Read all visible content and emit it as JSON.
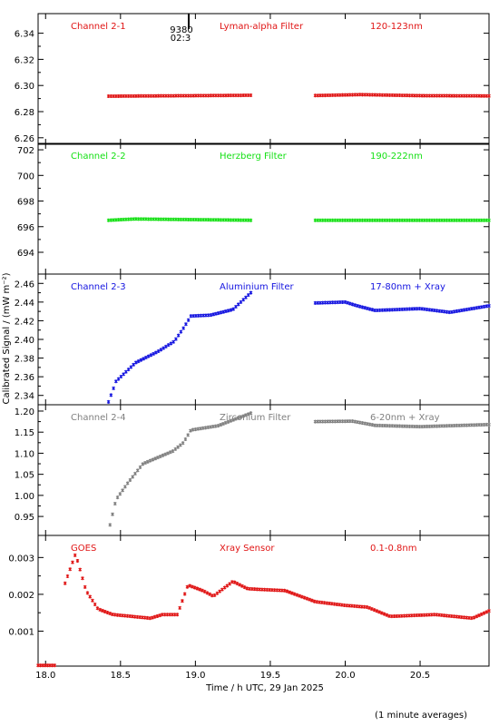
{
  "figure": {
    "ylabel": "Calibrated Signal / (mW m⁻²)",
    "xlabel": "Time / h UTC, 29 Jan 2025",
    "footnote": "(1 minute averages)",
    "annotation": {
      "lines": [
        "9380",
        "02:3"
      ]
    }
  },
  "chart_data": [
    {
      "type": "scatter",
      "color": "#e01414",
      "labels": [
        "Channel 2-1",
        "Lyman-alpha Filter",
        "120-123nm"
      ],
      "ylim": [
        6.255,
        6.355
      ],
      "yticks": [
        6.26,
        6.28,
        6.3,
        6.32,
        6.34
      ],
      "ytick_labels": [
        "6.26",
        "6.28",
        "6.30",
        "6.32",
        "6.34"
      ],
      "segments": [
        {
          "knots": [
            [
              18.42,
              6.2918
            ],
            [
              19.0,
              6.2922
            ],
            [
              19.37,
              6.2925
            ]
          ]
        },
        {
          "knots": [
            [
              19.8,
              6.2923
            ],
            [
              20.1,
              6.293
            ],
            [
              20.5,
              6.2922
            ],
            [
              20.96,
              6.292
            ]
          ]
        }
      ]
    },
    {
      "type": "scatter",
      "color": "#14e014",
      "labels": [
        "Channel 2-2",
        "Herzberg Filter",
        "190-222nm"
      ],
      "ylim": [
        692.3,
        702.5
      ],
      "yticks": [
        694,
        696,
        698,
        700,
        702
      ],
      "ytick_labels": [
        "694",
        "696",
        "698",
        "700",
        "702"
      ],
      "segments": [
        {
          "knots": [
            [
              18.42,
              696.5
            ],
            [
              18.6,
              696.6
            ],
            [
              19.37,
              696.5
            ]
          ]
        },
        {
          "knots": [
            [
              19.8,
              696.5
            ],
            [
              20.3,
              696.5
            ],
            [
              20.96,
              696.5
            ]
          ]
        }
      ]
    },
    {
      "type": "scatter",
      "color": "#1414e0",
      "labels": [
        "Channel 2-3",
        "Aluminium Filter",
        "17-80nm + Xray"
      ],
      "ylim": [
        2.33,
        2.47
      ],
      "yticks": [
        2.34,
        2.36,
        2.38,
        2.4,
        2.42,
        2.44,
        2.46
      ],
      "ytick_labels": [
        "2.34",
        "2.36",
        "2.38",
        "2.40",
        "2.42",
        "2.44",
        "2.46"
      ],
      "segments": [
        {
          "knots": [
            [
              18.42,
              2.333
            ],
            [
              18.47,
              2.355
            ],
            [
              18.6,
              2.375
            ],
            [
              18.75,
              2.387
            ],
            [
              18.86,
              2.398
            ],
            [
              18.92,
              2.412
            ],
            [
              18.97,
              2.425
            ],
            [
              19.1,
              2.426
            ],
            [
              19.25,
              2.432
            ],
            [
              19.37,
              2.45
            ]
          ]
        },
        {
          "knots": [
            [
              19.8,
              2.439
            ],
            [
              20.0,
              2.44
            ],
            [
              20.08,
              2.436
            ],
            [
              20.2,
              2.431
            ],
            [
              20.5,
              2.433
            ],
            [
              20.7,
              2.429
            ],
            [
              20.96,
              2.436
            ]
          ]
        }
      ]
    },
    {
      "type": "scatter",
      "color": "#808080",
      "labels": [
        "Channel 2-4",
        "Zirconium Filter",
        "6-20nm + Xray"
      ],
      "ylim": [
        0.905,
        1.215
      ],
      "yticks": [
        0.95,
        1.0,
        1.05,
        1.1,
        1.15,
        1.2
      ],
      "ytick_labels": [
        "0.95",
        "1.00",
        "1.05",
        "1.10",
        "1.15",
        "1.20"
      ],
      "segments": [
        {
          "knots": [
            [
              18.43,
              0.93
            ],
            [
              18.47,
              0.99
            ],
            [
              18.55,
              1.03
            ],
            [
              18.65,
              1.075
            ],
            [
              18.85,
              1.105
            ],
            [
              18.92,
              1.125
            ],
            [
              18.97,
              1.155
            ],
            [
              19.15,
              1.165
            ],
            [
              19.37,
              1.195
            ]
          ]
        },
        {
          "knots": [
            [
              19.8,
              1.175
            ],
            [
              20.05,
              1.176
            ],
            [
              20.2,
              1.166
            ],
            [
              20.5,
              1.163
            ],
            [
              20.96,
              1.168
            ]
          ]
        }
      ]
    },
    {
      "type": "scatter",
      "color": "#e01414",
      "labels": [
        "GOES",
        "Xray Sensor",
        "0.1-0.8nm"
      ],
      "ylim": [
        5e-05,
        0.0036
      ],
      "yticks": [
        0.001,
        0.002,
        0.003
      ],
      "ytick_labels": [
        "0.001",
        "0.002",
        "0.003"
      ],
      "segments": [
        {
          "knots": [
            [
              17.95,
              7e-05
            ],
            [
              18.06,
              7e-05
            ]
          ]
        },
        {
          "knots": [
            [
              18.13,
              0.0023
            ],
            [
              18.2,
              0.0031
            ],
            [
              18.27,
              0.0021
            ],
            [
              18.35,
              0.0016
            ],
            [
              18.45,
              0.00145
            ],
            [
              18.7,
              0.00135
            ],
            [
              18.78,
              0.00145
            ],
            [
              18.88,
              0.00145
            ],
            [
              18.95,
              0.00225
            ],
            [
              19.05,
              0.0021
            ],
            [
              19.12,
              0.00195
            ],
            [
              19.25,
              0.00235
            ],
            [
              19.35,
              0.00215
            ],
            [
              19.6,
              0.0021
            ],
            [
              19.8,
              0.0018
            ],
            [
              20.0,
              0.0017
            ],
            [
              20.15,
              0.00165
            ],
            [
              20.3,
              0.0014
            ],
            [
              20.6,
              0.00145
            ],
            [
              20.85,
              0.00135
            ],
            [
              20.96,
              0.00155
            ]
          ]
        }
      ]
    }
  ],
  "shared_x": {
    "xlim": [
      17.95,
      20.96
    ],
    "xticks": [
      18.0,
      18.5,
      19.0,
      19.5,
      20.0,
      20.5
    ],
    "xtick_labels": [
      "18.0",
      "18.5",
      "19.0",
      "19.5",
      "20.0",
      "20.5"
    ]
  }
}
